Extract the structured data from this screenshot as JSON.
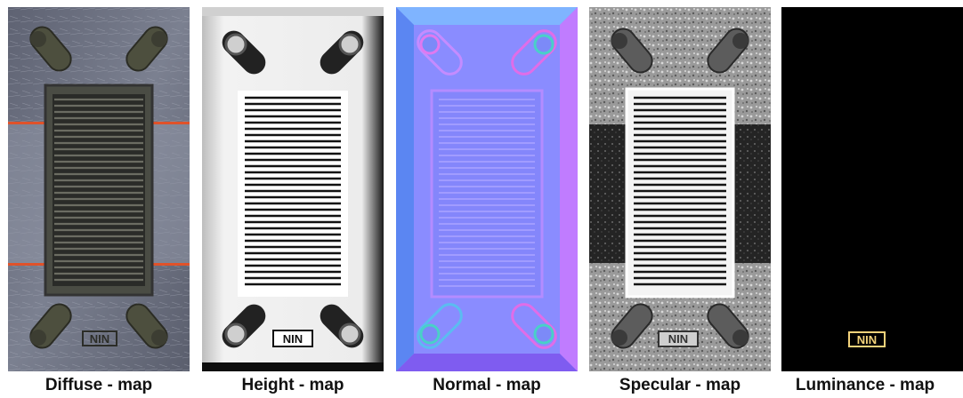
{
  "panels": [
    {
      "caption": "Diffuse - map",
      "logo": "NIN"
    },
    {
      "caption": "Height - map",
      "logo": "NIN"
    },
    {
      "caption": "Normal - map"
    },
    {
      "caption": "Specular - map",
      "logo": "NIN"
    },
    {
      "caption": "Luminance - map",
      "logo": "NIN"
    }
  ],
  "colors": {
    "diffuse_metal": "#6f7484",
    "diffuse_stripe": "#e0522a",
    "height_bg": "#ececec",
    "normal_base": "#8080ff",
    "specular_bg": "#9a9a9a",
    "luminance_bg": "#000000",
    "luminance_logo": "#f2d27a"
  },
  "icons": [
    "slot-icon",
    "vent-grille",
    "nin-logo"
  ]
}
